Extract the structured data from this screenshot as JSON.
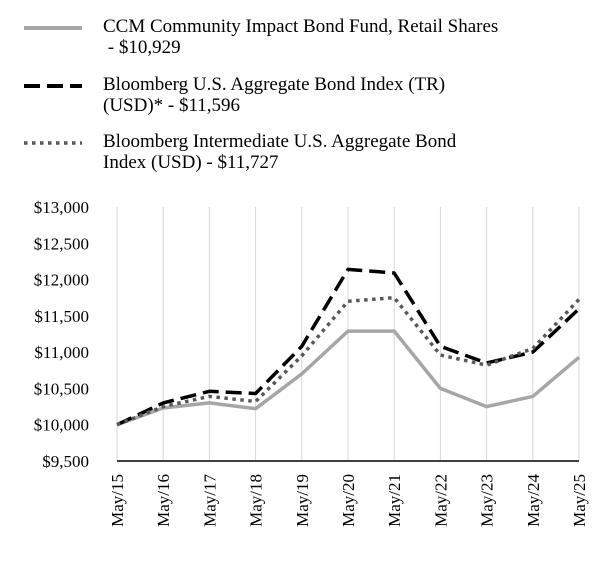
{
  "chart_data": {
    "type": "line",
    "categories": [
      "May/15",
      "May/16",
      "May/17",
      "May/18",
      "May/19",
      "May/20",
      "May/21",
      "May/22",
      "May/23",
      "May/24",
      "May/25"
    ],
    "ylim": [
      9500,
      13000
    ],
    "yticks": [
      9500,
      10000,
      10500,
      11000,
      11500,
      12000,
      12500,
      13000
    ],
    "ytick_labels": [
      "$9,500",
      "$10,000",
      "$10,500",
      "$11,000",
      "$11,500",
      "$12,000",
      "$12,500",
      "$13,000"
    ],
    "grid": "vertical",
    "legend_position": "top",
    "series": [
      {
        "name": "CCM Community Impact Bond Fund, Retail Shares - $10,929",
        "legend_lines": [
          "CCM Community Impact Bond Fund, Retail Shares",
          " - $10,929"
        ],
        "color": "#a6a6a6",
        "style": "solid",
        "values": [
          10000,
          10230,
          10300,
          10220,
          10700,
          11290,
          11290,
          10500,
          10250,
          10390,
          10929
        ]
      },
      {
        "name": "Bloomberg U.S. Aggregate Bond Index (TR) (USD)* - $11,596",
        "legend_lines": [
          "Bloomberg U.S. Aggregate Bond Index (TR)",
          "(USD)* - $11,596"
        ],
        "color": "#000000",
        "style": "dashed",
        "values": [
          10000,
          10300,
          10460,
          10430,
          11080,
          12140,
          12090,
          11080,
          10850,
          11000,
          11596
        ]
      },
      {
        "name": "Bloomberg Intermediate U.S. Aggregate Bond Index (USD) - $11,727",
        "legend_lines": [
          "Bloomberg Intermediate U.S. Aggregate Bond",
          "Index (USD) - $11,727"
        ],
        "color": "#595959",
        "style": "dotted",
        "values": [
          10000,
          10250,
          10390,
          10320,
          10950,
          11700,
          11750,
          10960,
          10820,
          11050,
          11727
        ]
      }
    ]
  }
}
